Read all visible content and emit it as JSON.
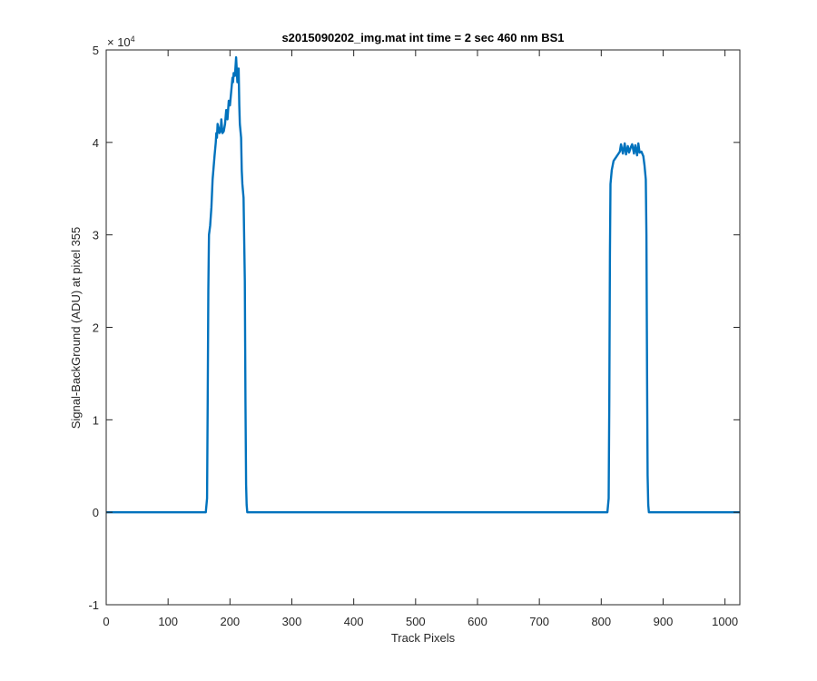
{
  "chart_data": {
    "type": "line",
    "title": "s2015090202_img.mat int time = 2 sec  460 nm BS1",
    "xlabel": "Track Pixels",
    "ylabel": "Signal-BackGround (ADU) at pixel 355",
    "xlim": [
      0,
      1024
    ],
    "ylim": [
      -10000,
      50000
    ],
    "x_ticks": [
      0,
      100,
      200,
      300,
      400,
      500,
      600,
      700,
      800,
      900,
      1000
    ],
    "x_tick_labels": [
      "0",
      "100",
      "200",
      "300",
      "400",
      "500",
      "600",
      "700",
      "800",
      "900",
      "1000"
    ],
    "y_ticks": [
      -10000,
      0,
      10000,
      20000,
      30000,
      40000,
      50000
    ],
    "y_tick_labels": [
      "-1",
      "0",
      "1",
      "2",
      "3",
      "4",
      "5"
    ],
    "y_exponent_label": "× 10",
    "y_exponent_power": "4",
    "grid": false,
    "line_color": "#0072BD",
    "series": [
      {
        "x": [
          0,
          150,
          161,
          163,
          164,
          165,
          166,
          168,
          170,
          172,
          175,
          177,
          178,
          179,
          180,
          182,
          183,
          185,
          186,
          188,
          190,
          192,
          194,
          196,
          198,
          200,
          202,
          204,
          205,
          206,
          208,
          210,
          212,
          214,
          215,
          216,
          218,
          219,
          220,
          222,
          224,
          225,
          226,
          227,
          228,
          229,
          230,
          300,
          400,
          500,
          600,
          700,
          800,
          810,
          812,
          813,
          814,
          815,
          817,
          820,
          825,
          830,
          832,
          835,
          838,
          840,
          843,
          845,
          848,
          850,
          853,
          855,
          858,
          860,
          862,
          865,
          868,
          870,
          872,
          873,
          874,
          875,
          876,
          877,
          880,
          900,
          1024
        ],
        "y": [
          0,
          0,
          0,
          1500,
          12000,
          24000,
          30000,
          31000,
          33000,
          36000,
          38500,
          40000,
          41000,
          40500,
          42000,
          41500,
          41000,
          41200,
          42500,
          41000,
          41200,
          42000,
          43500,
          42500,
          44500,
          44000,
          45500,
          47000,
          46500,
          47500,
          47200,
          49200,
          46500,
          48000,
          44000,
          42000,
          40500,
          37000,
          35500,
          34000,
          25000,
          12000,
          3000,
          800,
          0,
          0,
          0,
          0,
          0,
          0,
          0,
          0,
          0,
          0,
          1500,
          12000,
          28000,
          35500,
          37000,
          38000,
          38500,
          39000,
          39800,
          38800,
          39900,
          38700,
          39600,
          38900,
          39500,
          39800,
          38800,
          39700,
          38600,
          39900,
          38900,
          39000,
          38500,
          37500,
          36000,
          30000,
          15000,
          4000,
          800,
          0,
          0,
          0,
          0
        ]
      }
    ]
  }
}
